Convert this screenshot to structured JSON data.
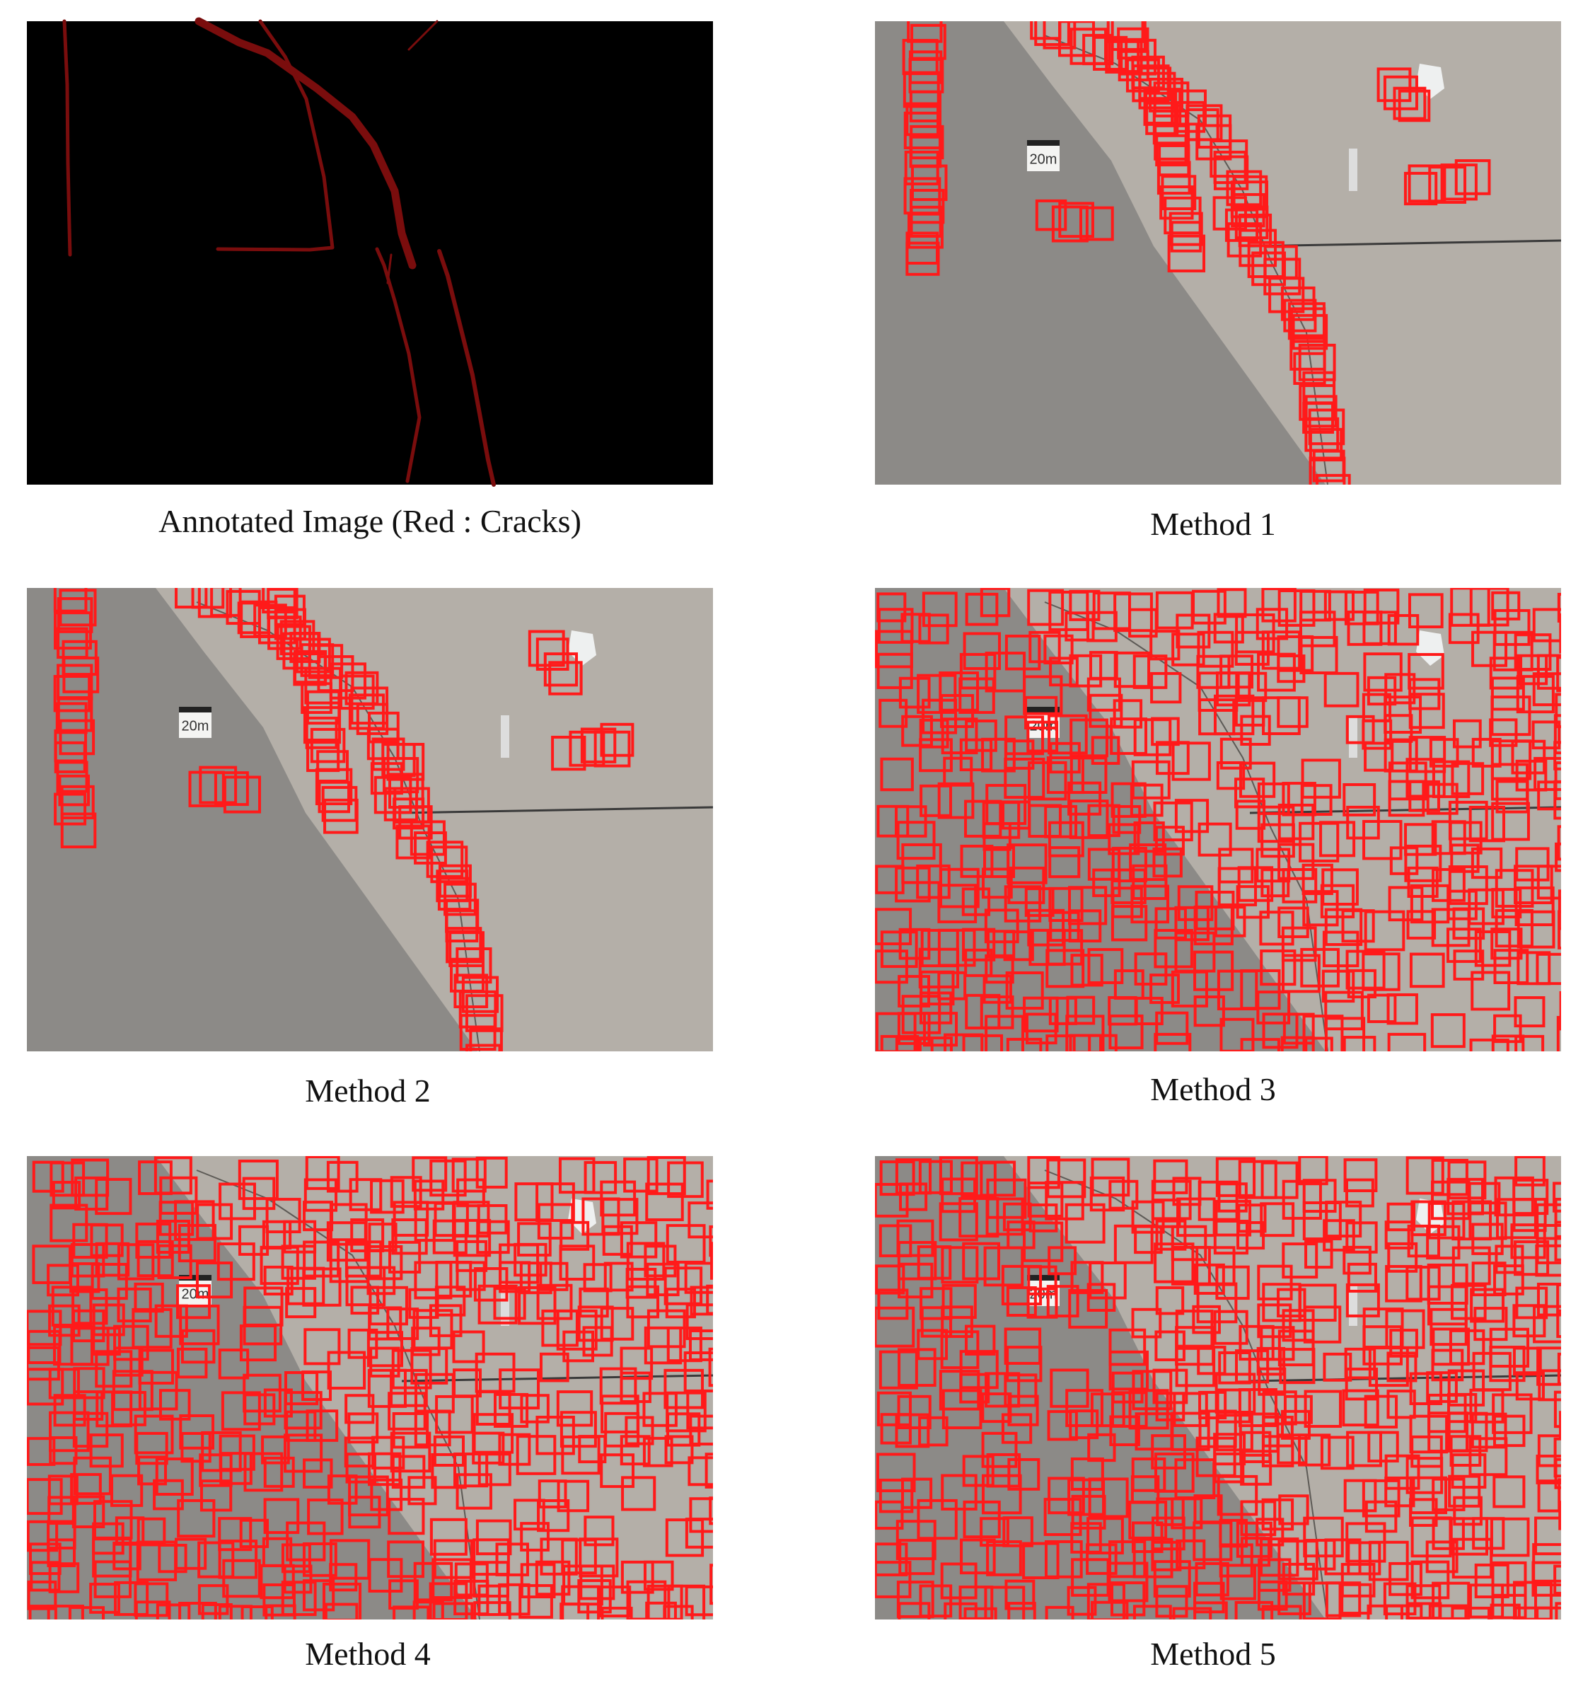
{
  "figure": {
    "panels": [
      {
        "caption": "Annotated Image (Red : Cracks)"
      },
      {
        "caption": "Method 1"
      },
      {
        "caption": "Method 2"
      },
      {
        "caption": "Method 3"
      },
      {
        "caption": "Method 4"
      },
      {
        "caption": "Method 5"
      }
    ],
    "scale_marker": "20m"
  }
}
